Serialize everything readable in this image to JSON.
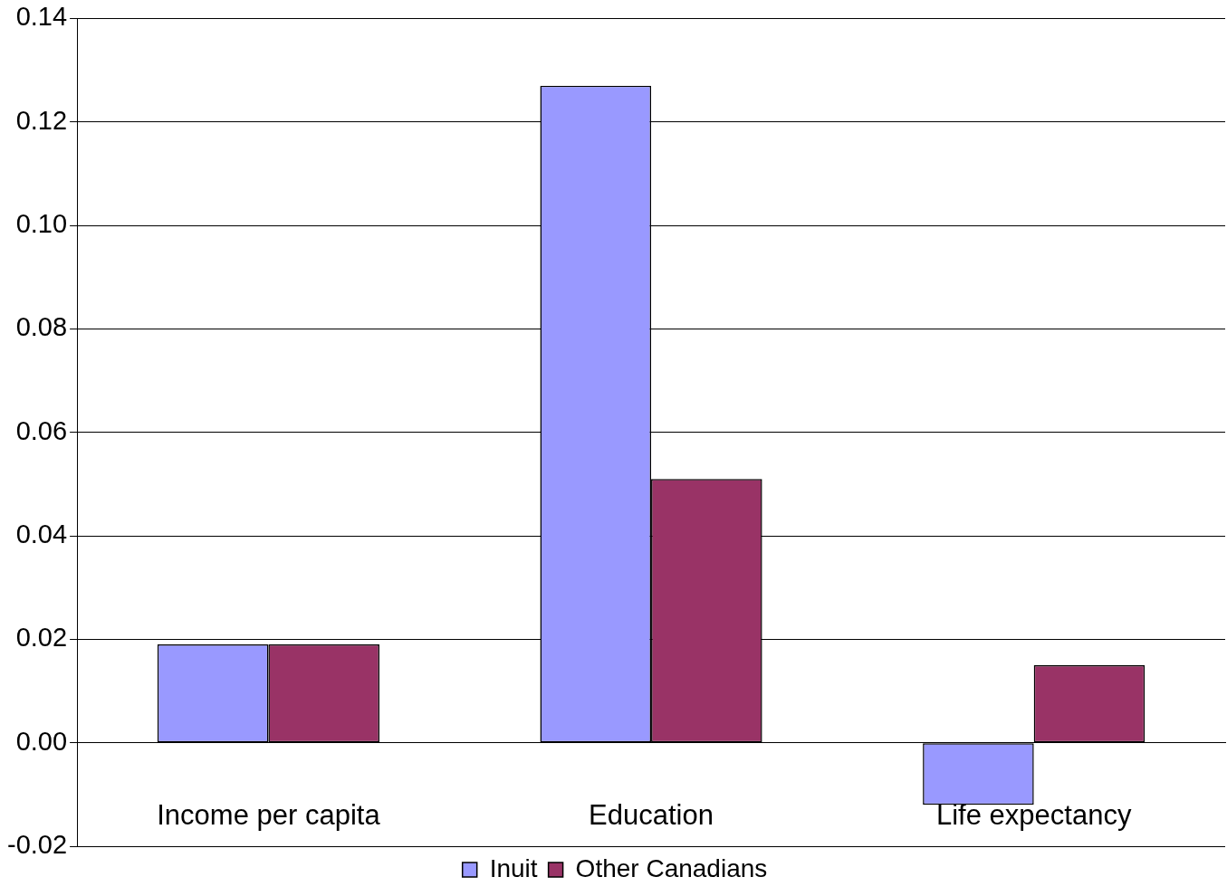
{
  "chart_data": {
    "type": "bar",
    "categories": [
      "Income per capita",
      "Education",
      "Life expectancy"
    ],
    "series": [
      {
        "name": "Inuit",
        "color": "#9999ff",
        "values": [
          0.019,
          0.127,
          -0.012
        ]
      },
      {
        "name": "Other Canadians",
        "color": "#993366",
        "values": [
          0.019,
          0.051,
          0.015
        ]
      }
    ],
    "ylim": [
      -0.02,
      0.14
    ],
    "yticks": [
      {
        "value": -0.02,
        "label": "-0.02"
      },
      {
        "value": 0,
        "label": "0.00"
      },
      {
        "value": 0.02,
        "label": "0.02"
      },
      {
        "value": 0.04,
        "label": "0.04"
      },
      {
        "value": 0.06,
        "label": "0.06"
      },
      {
        "value": 0.08,
        "label": "0.08"
      },
      {
        "value": 0.1,
        "label": "0.10"
      },
      {
        "value": 0.12,
        "label": "0.12"
      },
      {
        "value": 0.14,
        "label": "0.14"
      }
    ],
    "grid": "y",
    "legend": "bottom"
  }
}
